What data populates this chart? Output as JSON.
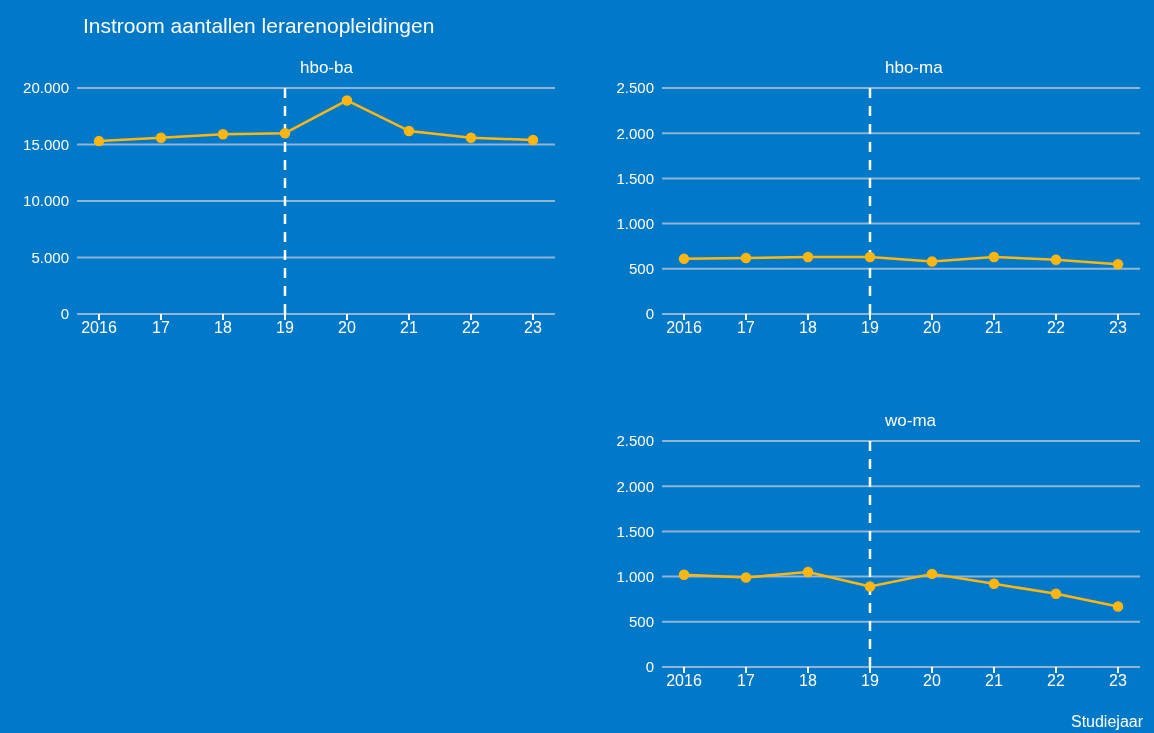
{
  "chart_data": [
    {
      "type": "line",
      "title": "hbo-ba",
      "annotations": [
        "Instroom aantallen lerarenopleidingen"
      ],
      "categories": [
        "2016",
        "17",
        "18",
        "19",
        "20",
        "21",
        "22",
        "23"
      ],
      "series": [
        {
          "color": "#ffb612",
          "values": [
            15300,
            15600,
            15900,
            16000,
            18900,
            16200,
            15600,
            15400
          ]
        }
      ],
      "ylim": [
        0,
        20000
      ],
      "yticks": [
        {
          "value": 0,
          "label": "0"
        },
        {
          "value": 5000,
          "label": "5.000"
        },
        {
          "value": 10000,
          "label": "10.000"
        },
        {
          "value": 15000,
          "label": "15.000"
        },
        {
          "value": 20000,
          "label": "20.000"
        }
      ],
      "grid": "y",
      "legend": false,
      "marker": "circle",
      "line_style": "solid",
      "ref_lines": [
        {
          "axis": "x",
          "value": "19",
          "color": "#ffffff",
          "line_style": "dashed"
        }
      ]
    },
    {
      "type": "line",
      "title": "hbo-ma",
      "categories": [
        "2016",
        "17",
        "18",
        "19",
        "20",
        "21",
        "22",
        "23"
      ],
      "series": [
        {
          "color": "#ffb612",
          "values": [
            610,
            620,
            630,
            630,
            580,
            630,
            600,
            550
          ]
        }
      ],
      "ylim": [
        0,
        2500
      ],
      "yticks": [
        {
          "value": 0,
          "label": "0"
        },
        {
          "value": 500,
          "label": "500"
        },
        {
          "value": 1000,
          "label": "1.000"
        },
        {
          "value": 1500,
          "label": "1.500"
        },
        {
          "value": 2000,
          "label": "2.000"
        },
        {
          "value": 2500,
          "label": "2.500"
        }
      ],
      "grid": "y",
      "legend": false,
      "marker": "circle",
      "line_style": "solid",
      "ref_lines": [
        {
          "axis": "x",
          "value": "19",
          "color": "#ffffff",
          "line_style": "dashed"
        }
      ]
    },
    {
      "type": "line",
      "title": "wo-ma",
      "xlabel": "Studiejaar",
      "categories": [
        "2016",
        "17",
        "18",
        "19",
        "20",
        "21",
        "22",
        "23"
      ],
      "series": [
        {
          "color": "#ffb612",
          "values": [
            1020,
            990,
            1050,
            890,
            1030,
            920,
            810,
            670
          ]
        }
      ],
      "ylim": [
        0,
        2500
      ],
      "yticks": [
        {
          "value": 0,
          "label": "0"
        },
        {
          "value": 500,
          "label": "500"
        },
        {
          "value": 1000,
          "label": "1.000"
        },
        {
          "value": 1500,
          "label": "1.500"
        },
        {
          "value": 2000,
          "label": "2.000"
        },
        {
          "value": 2500,
          "label": "2.500"
        }
      ],
      "grid": "y",
      "legend": false,
      "marker": "circle",
      "line_style": "solid",
      "ref_lines": [
        {
          "axis": "x",
          "value": "19",
          "color": "#ffffff",
          "line_style": "dashed"
        }
      ]
    }
  ]
}
